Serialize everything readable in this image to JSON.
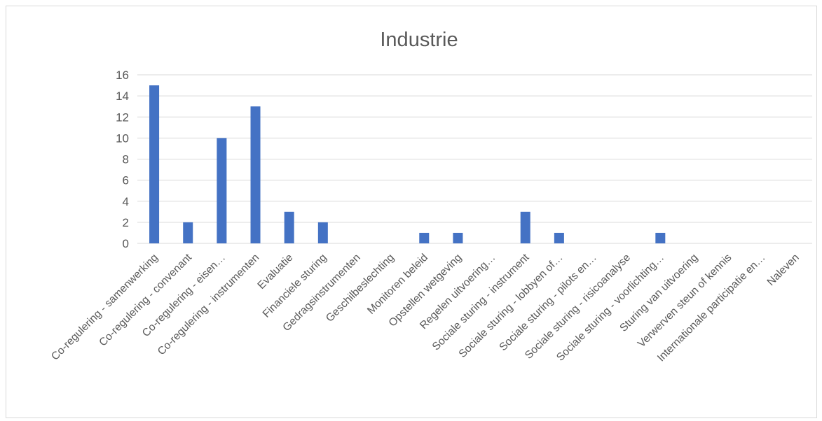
{
  "chart_data": {
    "type": "bar",
    "title": "Industrie",
    "xlabel": "",
    "ylabel": "",
    "ylim": [
      0,
      16
    ],
    "yticks": [
      0,
      2,
      4,
      6,
      8,
      10,
      12,
      14,
      16
    ],
    "grid": true,
    "legend": "none",
    "bar_color": "#4472C4",
    "categories": [
      "Co-regulering - samenwerking",
      "Co-regulering - convenant",
      "Co-regulering - eisen…",
      "Co-regulering - instrumenten",
      "Evaluatie",
      "Financiele sturing",
      "Gedragsinstrumenten",
      "Geschilbeslechting",
      "Monitoren beleid",
      "Opstellen wetgeving",
      "Regelen uitvoering…",
      "Sociale sturing - instrument",
      "Sociale sturing - lobbyen of…",
      "Sociale sturing - pilots en…",
      "Sociale sturing - risicoanalyse",
      "Sociale sturing - voorlichting…",
      "Sturing van uitvoering",
      "Verwerven steun of kennis",
      "Internationale participatie en…",
      "Naleven"
    ],
    "values": [
      15,
      2,
      10,
      13,
      3,
      2,
      0,
      0,
      1,
      1,
      0,
      3,
      1,
      0,
      0,
      1,
      0,
      0,
      0,
      0
    ]
  }
}
